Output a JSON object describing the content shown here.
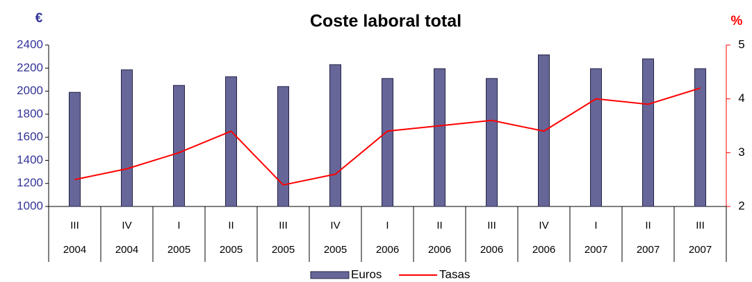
{
  "chart_data": {
    "type": "bar_line",
    "title": "Coste laboral total",
    "y_unit": "€",
    "y2_unit": "%",
    "categories": [
      "III",
      "IV",
      "I",
      "II",
      "III",
      "IV",
      "I",
      "II",
      "III",
      "IV",
      "I",
      "II",
      "III"
    ],
    "category_years": [
      "2004",
      "2004",
      "2005",
      "2005",
      "2005",
      "2005",
      "2006",
      "2006",
      "2006",
      "2006",
      "2007",
      "2007",
      "2007"
    ],
    "series": [
      {
        "name": "Euros",
        "type": "bar",
        "color": "#666699",
        "values": [
          1990,
          2185,
          2050,
          2125,
          2040,
          2230,
          2110,
          2195,
          2110,
          2315,
          2195,
          2280,
          2195
        ]
      },
      {
        "name": "Tasas",
        "type": "line",
        "color": "#ff0000",
        "axis": "y2",
        "values": [
          2.5,
          2.7,
          3.0,
          3.4,
          2.4,
          2.6,
          3.4,
          3.5,
          3.6,
          3.4,
          4.0,
          3.9,
          4.2
        ]
      }
    ],
    "ylim": [
      1000,
      2400
    ],
    "yticks": [
      1000,
      1200,
      1400,
      1600,
      1800,
      2000,
      2200,
      2400
    ],
    "y2lim": [
      2,
      5
    ],
    "y2ticks": [
      2,
      3,
      4,
      5
    ],
    "legend": "bottom"
  }
}
